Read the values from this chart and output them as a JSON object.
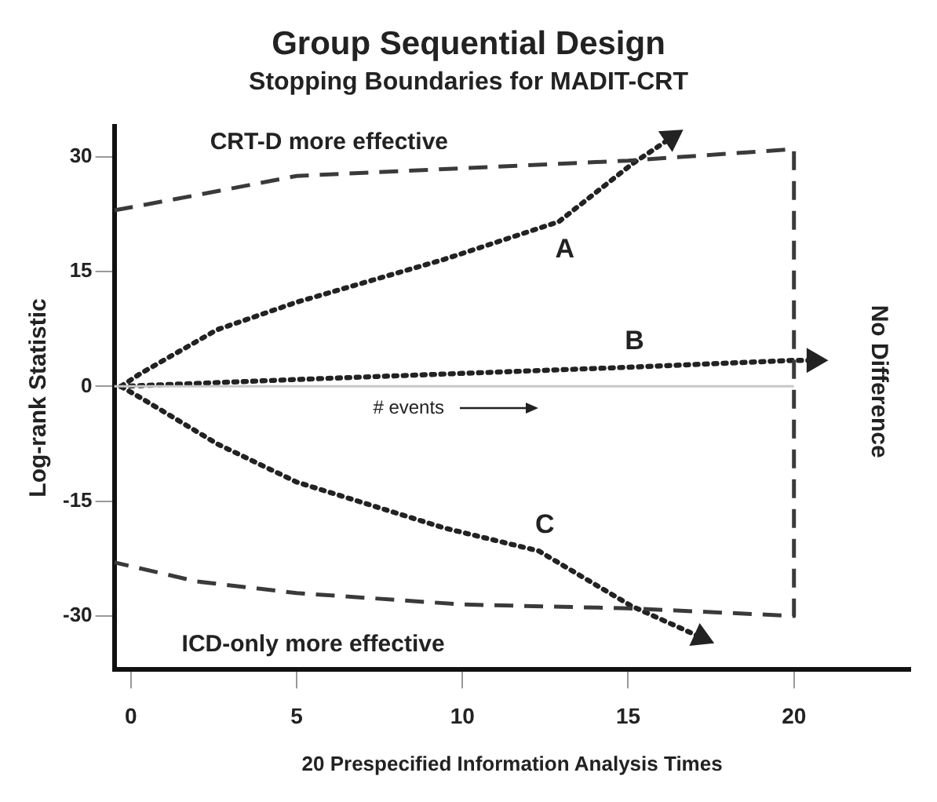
{
  "chart_data": {
    "type": "line",
    "title": "Group Sequential Design",
    "subtitle": "Stopping Boundaries for MADIT-CRT",
    "xlabel": "20 Prespecified Information Analysis Times",
    "ylabel": "Log-rank Statistic",
    "xlim": [
      -0.5,
      23.5
    ],
    "ylim": [
      -37,
      34
    ],
    "xticks": [
      0,
      5,
      10,
      15,
      20
    ],
    "yticks": [
      30,
      15,
      0,
      -15,
      -30
    ],
    "grid": false,
    "legend": false,
    "line_style": "dotted",
    "series": [
      {
        "color": "#3a3a3a",
        "line_style": "dashed",
        "x": [
          -0.5,
          2,
          5,
          10,
          15,
          20,
          20,
          15,
          10,
          5,
          2,
          -0.5
        ],
        "values": [
          23,
          25,
          27.5,
          28.5,
          29.5,
          31,
          -30,
          -29,
          -28.5,
          -27,
          -25.5,
          -23
        ]
      },
      {
        "name": "A",
        "color": "#222222",
        "x": [
          -0.3,
          0.3,
          2.6,
          5,
          9.45,
          12.9,
          15.1,
          16.3
        ],
        "values": [
          0,
          1.7,
          7.4,
          11,
          16.6,
          21.5,
          29,
          32.5
        ]
      },
      {
        "name": "B",
        "color": "#222222",
        "x": [
          -0.3,
          5,
          10,
          15,
          20,
          20.6
        ],
        "values": [
          0,
          0.9,
          1.7,
          2.5,
          3.4,
          3.4
        ]
      },
      {
        "name": "C",
        "color": "#222222",
        "x": [
          -0.3,
          0.3,
          2.6,
          5,
          9.45,
          12.3,
          15.1,
          17.2
        ],
        "values": [
          0,
          -1.5,
          -7.5,
          -12.5,
          -18.5,
          -21.5,
          -28.7,
          -32.8
        ]
      }
    ],
    "ref_lines": [
      {
        "axis": "y",
        "value": 0,
        "color": "#c8c8c8"
      }
    ],
    "annotations": [
      "CRT-D more effective",
      "ICD-only more effective",
      "# events",
      "No Difference"
    ]
  }
}
